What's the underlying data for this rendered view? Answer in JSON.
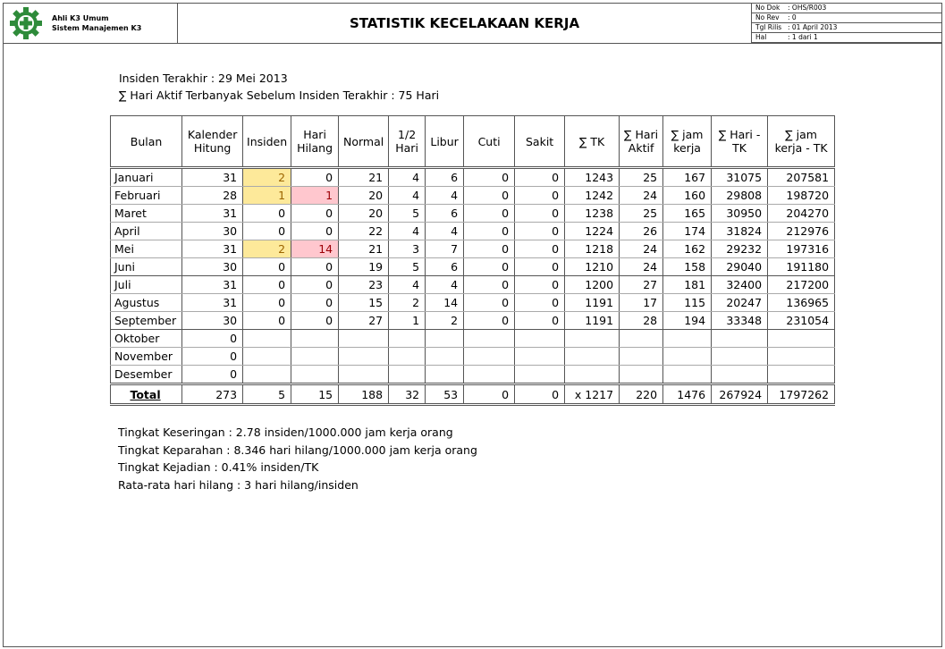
{
  "header": {
    "org_line1": "Ahli K3 Umum",
    "org_line2": "Sistem Manajemen K3",
    "title": "STATISTIK KECELAKAAN KERJA",
    "meta": [
      {
        "label": "No Dok",
        "value": ": OHS/R003"
      },
      {
        "label": "No Rev",
        "value": ": 0"
      },
      {
        "label": "Tgl Rilis",
        "value": ": 01 April 2013"
      },
      {
        "label": "Hal",
        "value": ": 1 dari 1"
      }
    ]
  },
  "info": {
    "last_incident": "Insiden Terakhir : 29 Mei 2013",
    "max_active_days": "∑ Hari Aktif Terbanyak Sebelum Insiden Terakhir : 75 Hari"
  },
  "table": {
    "headers": [
      "Bulan",
      "Kalender Hitung",
      "Insiden",
      "Hari Hilang",
      "Normal",
      "1/2 Hari",
      "Libur",
      "Cuti",
      "Sakit",
      "∑ TK",
      "∑ Hari Aktif",
      "∑ jam kerja",
      "∑ Hari - TK",
      "∑ jam kerja - TK"
    ],
    "rows": [
      [
        "Januari",
        "31",
        "2",
        "0",
        "21",
        "4",
        "6",
        "0",
        "0",
        "1243",
        "25",
        "167",
        "31075",
        "207581"
      ],
      [
        "Februari",
        "28",
        "1",
        "1",
        "20",
        "4",
        "4",
        "0",
        "0",
        "1242",
        "24",
        "160",
        "29808",
        "198720"
      ],
      [
        "Maret",
        "31",
        "0",
        "0",
        "20",
        "5",
        "6",
        "0",
        "0",
        "1238",
        "25",
        "165",
        "30950",
        "204270"
      ],
      [
        "April",
        "30",
        "0",
        "0",
        "22",
        "4",
        "4",
        "0",
        "0",
        "1224",
        "26",
        "174",
        "31824",
        "212976"
      ],
      [
        "Mei",
        "31",
        "2",
        "14",
        "21",
        "3",
        "7",
        "0",
        "0",
        "1218",
        "24",
        "162",
        "29232",
        "197316"
      ],
      [
        "Juni",
        "30",
        "0",
        "0",
        "19",
        "5",
        "6",
        "0",
        "0",
        "1210",
        "24",
        "158",
        "29040",
        "191180"
      ],
      [
        "Juli",
        "31",
        "0",
        "0",
        "23",
        "4",
        "4",
        "0",
        "0",
        "1200",
        "27",
        "181",
        "32400",
        "217200"
      ],
      [
        "Agustus",
        "31",
        "0",
        "0",
        "15",
        "2",
        "14",
        "0",
        "0",
        "1191",
        "17",
        "115",
        "20247",
        "136965"
      ],
      [
        "September",
        "30",
        "0",
        "0",
        "27",
        "1",
        "2",
        "0",
        "0",
        "1191",
        "28",
        "194",
        "33348",
        "231054"
      ],
      [
        "Oktober",
        "0",
        "",
        "",
        "",
        "",
        "",
        "",
        "",
        "",
        "",
        "",
        "",
        ""
      ],
      [
        "November",
        "0",
        "",
        "",
        "",
        "",
        "",
        "",
        "",
        "",
        "",
        "",
        "",
        ""
      ],
      [
        "Desember",
        "0",
        "",
        "",
        "",
        "",
        "",
        "",
        "",
        "",
        "",
        "",
        "",
        ""
      ]
    ],
    "total": [
      "Total",
      "273",
      "5",
      "15",
      "188",
      "32",
      "53",
      "0",
      "0",
      "x 1217",
      "220",
      "1476",
      "267924",
      "1797262"
    ]
  },
  "notes": [
    "Tingkat Keseringan : 2.78 insiden/1000.000 jam kerja orang",
    "Tingkat Keparahan : 8.346 hari hilang/1000.000 jam kerja orang",
    "Tingkat Kejadian : 0.41% insiden/TK",
    "Rata-rata hari hilang : 3 hari hilang/insiden"
  ],
  "colors": {
    "logo": "#2e8b3a",
    "highlight_incident": "#fde99a",
    "highlight_lost": "#ffc7ce"
  }
}
